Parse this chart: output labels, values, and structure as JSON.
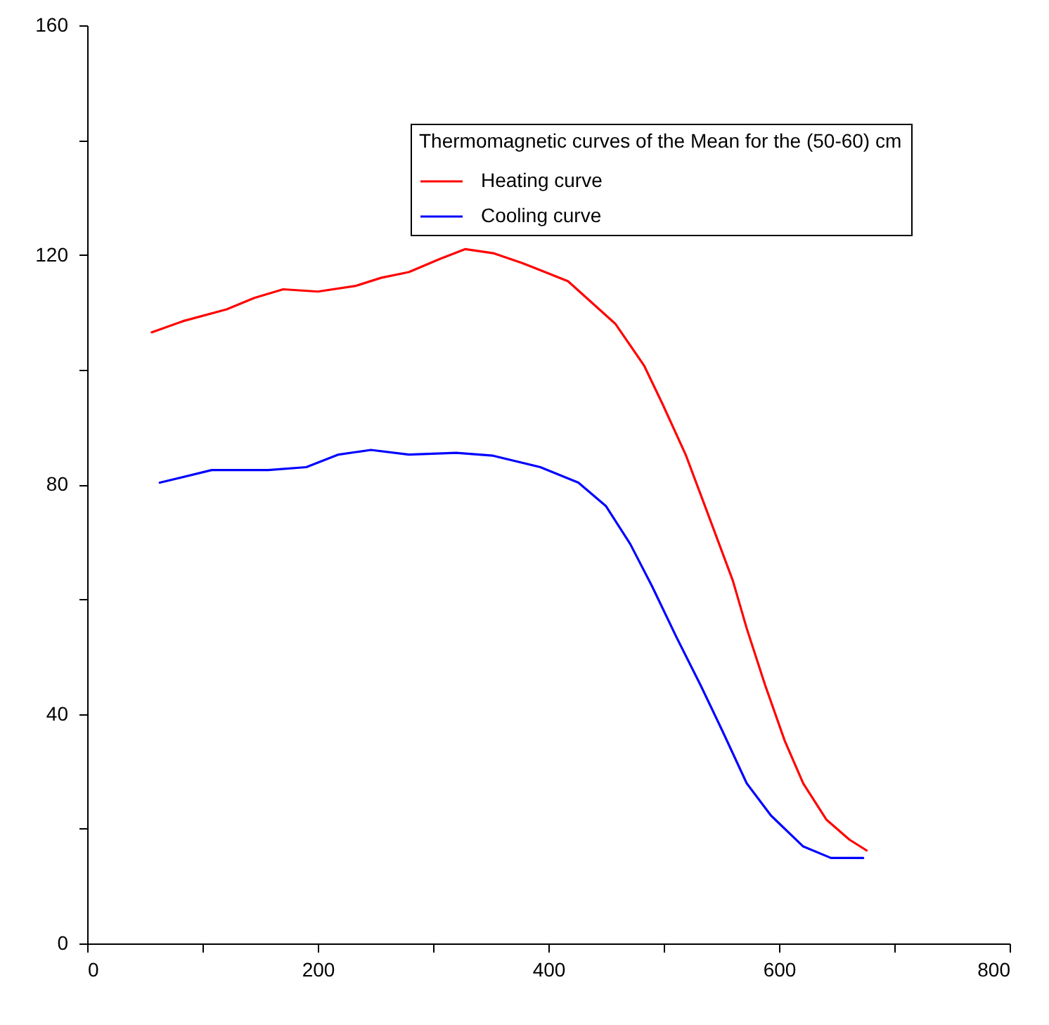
{
  "chart_data": {
    "type": "line",
    "legend_title": "Thermomagnetic curves of the Mean for the (50-60) cm",
    "legend": "top right",
    "grid": false,
    "line_style": "solid",
    "xlim": [
      0,
      800
    ],
    "xticks": [
      0,
      {
        "value": 100,
        "label": null
      },
      200,
      {
        "value": 300,
        "label": null
      },
      400,
      {
        "value": 500,
        "label": null
      },
      600,
      {
        "value": 700,
        "label": null
      },
      800
    ],
    "ylim": [
      0,
      160
    ],
    "yticks": [
      0,
      {
        "value": 20,
        "label": null
      },
      40,
      {
        "value": 60,
        "label": null
      },
      80,
      {
        "value": 100,
        "label": null
      },
      120,
      {
        "value": 140,
        "label": null
      },
      160
    ],
    "series": [
      {
        "name": "Heating curve",
        "color": "#ff0000",
        "x": [
          56,
          84,
          121,
          145,
          170,
          200,
          233,
          255,
          279,
          306,
          328,
          352,
          377,
          417,
          458,
          483,
          499,
          519,
          539,
          560,
          572,
          588,
          605,
          621,
          641,
          661,
          676
        ],
        "values": [
          106.5,
          108.5,
          110.5,
          112.5,
          114,
          113.6,
          114.6,
          116,
          117,
          119.3,
          121,
          120.3,
          118.6,
          115.4,
          108,
          100.7,
          94,
          85.2,
          74.5,
          63.2,
          54.9,
          45,
          35.3,
          27.9,
          21.6,
          18.1,
          16.2
        ]
      },
      {
        "name": "Cooling curve",
        "color": "#0000ff",
        "x": [
          63,
          108,
          157,
          190,
          218,
          246,
          279,
          320,
          352,
          393,
          426,
          450,
          471,
          490,
          511,
          532,
          551,
          572,
          593,
          621,
          645,
          673
        ],
        "values": [
          80.3,
          82.5,
          82.5,
          83,
          85.2,
          86,
          85.2,
          85.5,
          85,
          83,
          80.3,
          76.2,
          69.6,
          62.2,
          53.4,
          45,
          37,
          27.9,
          22.3,
          16.9,
          14.9,
          14.9
        ]
      }
    ]
  }
}
